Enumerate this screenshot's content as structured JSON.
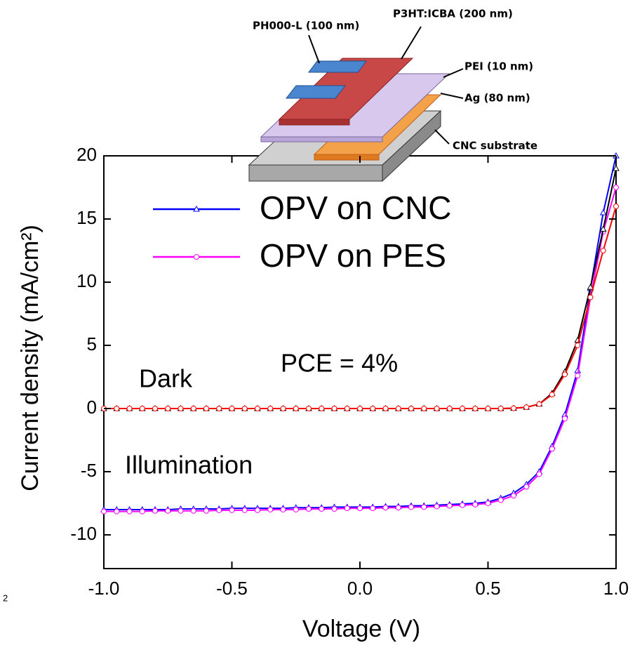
{
  "chart_data": {
    "type": "line",
    "x": [
      -1.0,
      -0.95,
      -0.9,
      -0.85,
      -0.8,
      -0.75,
      -0.7,
      -0.65,
      -0.6,
      -0.55,
      -0.5,
      -0.45,
      -0.4,
      -0.35,
      -0.3,
      -0.25,
      -0.2,
      -0.15,
      -0.1,
      -0.05,
      0.0,
      0.05,
      0.1,
      0.15,
      0.2,
      0.25,
      0.3,
      0.35,
      0.4,
      0.45,
      0.5,
      0.55,
      0.6,
      0.65,
      0.7,
      0.75,
      0.8,
      0.85,
      0.9,
      0.95,
      1.0
    ],
    "series": [
      {
        "name": "OPV on CNC",
        "color": "#0000ff",
        "marker": "triangle",
        "values": [
          -8.0,
          -8.0,
          -8.0,
          -8.0,
          -8.0,
          -8.0,
          -7.95,
          -7.95,
          -7.95,
          -7.95,
          -7.9,
          -7.9,
          -7.9,
          -7.9,
          -7.9,
          -7.85,
          -7.85,
          -7.85,
          -7.8,
          -7.8,
          -7.8,
          -7.8,
          -7.75,
          -7.75,
          -7.7,
          -7.7,
          -7.65,
          -7.6,
          -7.55,
          -7.5,
          -7.4,
          -7.1,
          -6.7,
          -6.0,
          -5.0,
          -3.0,
          -0.5,
          3.0,
          9.5,
          15.5,
          20.0
        ]
      },
      {
        "name": "OPV on PES",
        "color": "#ff00ff",
        "marker": "circle",
        "values": [
          -8.15,
          -8.15,
          -8.15,
          -8.15,
          -8.1,
          -8.1,
          -8.1,
          -8.1,
          -8.1,
          -8.05,
          -8.05,
          -8.05,
          -8.05,
          -8.0,
          -8.0,
          -8.0,
          -7.95,
          -7.95,
          -7.95,
          -7.9,
          -7.9,
          -7.9,
          -7.85,
          -7.85,
          -7.8,
          -7.8,
          -7.75,
          -7.7,
          -7.65,
          -7.6,
          -7.5,
          -7.25,
          -6.9,
          -6.2,
          -5.2,
          -3.2,
          -0.8,
          2.6,
          8.8,
          14.0,
          17.5
        ]
      },
      {
        "color": "#000000",
        "marker": "triangle",
        "values": [
          0,
          0,
          0,
          0,
          0,
          0,
          0,
          0,
          0,
          0,
          0,
          0,
          0,
          0,
          0,
          0,
          0,
          0,
          0,
          0,
          0,
          0,
          0,
          0,
          0,
          0,
          0,
          0,
          0,
          0,
          0,
          0,
          0.02,
          0.1,
          0.35,
          1.2,
          2.9,
          5.4,
          9.6,
          14.2,
          19.0
        ]
      },
      {
        "color": "#ff0000",
        "marker": "circle",
        "values": [
          0,
          0,
          0,
          0,
          0,
          0,
          0,
          0,
          0,
          0,
          0,
          0,
          0,
          0,
          0,
          0,
          0,
          0,
          0,
          0,
          0,
          0,
          0,
          0,
          0,
          0,
          0,
          0,
          0,
          0,
          0,
          0,
          0.02,
          0.1,
          0.35,
          1.1,
          2.7,
          5.0,
          8.8,
          12.5,
          16.0
        ]
      }
    ],
    "xlim": [
      -1.0,
      1.0
    ],
    "xticks": [
      {
        "value": -1.0,
        "label": "-1.0"
      },
      -0.5,
      {
        "value": 0.0,
        "label": "0.0"
      },
      0.5,
      {
        "value": 1.0,
        "label": "1.0"
      }
    ],
    "ylim": [
      -12.67,
      20
    ],
    "yticks": [
      -10,
      -5,
      0,
      5,
      10,
      15,
      20
    ],
    "xlabel": "Voltage (V)",
    "ylabel": "Current density (mA/cm²)",
    "annotations": [
      "Dark",
      "PCE = 4%",
      "Illumination"
    ],
    "stray_text": "2",
    "inset_labels": [
      "PH000-L (100 nm)",
      "P3HT:ICBA (200 nm)",
      "PEI (10 nm)",
      "Ag (80 nm)",
      "CNC substrate"
    ]
  }
}
